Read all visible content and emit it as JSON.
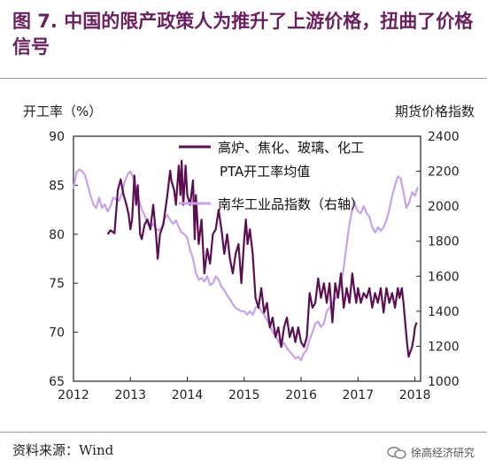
{
  "title": "图 7. 中国的限产政策人为推升了上游价格，扭曲了价格信号",
  "left_axis_title": "开工率（%）",
  "right_axis_title": "期货价格指数",
  "source": "资料来源：Wind",
  "watermark": "徐高经济研究",
  "colors": {
    "title": "#6b1f5f",
    "series1": "#5b0e52",
    "series2": "#c9a0ea"
  },
  "chart_data": {
    "type": "line",
    "x_ticks": [
      "2012",
      "2013",
      "2014",
      "2015",
      "2016",
      "2017",
      "2018"
    ],
    "xlim": [
      2012,
      2018.1
    ],
    "y_left": {
      "ticks": [
        "65",
        "70",
        "75",
        "80",
        "85",
        "90"
      ],
      "lim": [
        65,
        90
      ]
    },
    "y_right": {
      "ticks": [
        "1000",
        "1200",
        "1400",
        "1600",
        "1800",
        "2000",
        "2200",
        "2400"
      ],
      "lim": [
        1000,
        2400
      ]
    },
    "legend": [
      "高炉、焦化、玻璃、化工",
      "PTA开工率均值",
      "南华工业品指数（右轴）"
    ],
    "series": [
      {
        "name": "高炉、焦化、玻璃、化工 PTA开工率均值",
        "axis": "left",
        "points": [
          [
            2012.6,
            80.0
          ],
          [
            2012.65,
            80.4
          ],
          [
            2012.72,
            80.1
          ],
          [
            2012.78,
            84.5
          ],
          [
            2012.83,
            85.6
          ],
          [
            2012.88,
            84.0
          ],
          [
            2012.93,
            83.0
          ],
          [
            2012.97,
            82.0
          ],
          [
            2013.0,
            80.5
          ],
          [
            2013.03,
            81.5
          ],
          [
            2013.07,
            86.0
          ],
          [
            2013.1,
            83.0
          ],
          [
            2013.13,
            85.0
          ],
          [
            2013.17,
            80.0
          ],
          [
            2013.2,
            79.5
          ],
          [
            2013.25,
            81.0
          ],
          [
            2013.3,
            81.5
          ],
          [
            2013.35,
            80.5
          ],
          [
            2013.4,
            83.0
          ],
          [
            2013.45,
            80.0
          ],
          [
            2013.48,
            77.5
          ],
          [
            2013.52,
            80.0
          ],
          [
            2013.58,
            81.0
          ],
          [
            2013.65,
            84.0
          ],
          [
            2013.7,
            86.5
          ],
          [
            2013.72,
            85.5
          ],
          [
            2013.77,
            84.5
          ],
          [
            2013.8,
            83.0
          ],
          [
            2013.85,
            87.0
          ],
          [
            2013.88,
            84.0
          ],
          [
            2013.9,
            87.5
          ],
          [
            2013.93,
            83.0
          ],
          [
            2013.97,
            87.0
          ],
          [
            2014.0,
            84.0
          ],
          [
            2014.05,
            83.0
          ],
          [
            2014.1,
            85.5
          ],
          [
            2014.13,
            79.5
          ],
          [
            2014.15,
            84.0
          ],
          [
            2014.2,
            79.0
          ],
          [
            2014.25,
            81.5
          ],
          [
            2014.3,
            76.0
          ],
          [
            2014.35,
            78.5
          ],
          [
            2014.4,
            77.0
          ],
          [
            2014.45,
            80.0
          ],
          [
            2014.5,
            80.5
          ],
          [
            2014.55,
            82.5
          ],
          [
            2014.6,
            80.5
          ],
          [
            2014.65,
            78.0
          ],
          [
            2014.7,
            80.0
          ],
          [
            2014.75,
            77.5
          ],
          [
            2014.8,
            76.0
          ],
          [
            2014.85,
            78.0
          ],
          [
            2014.9,
            79.0
          ],
          [
            2014.95,
            75.0
          ],
          [
            2015.0,
            79.5
          ],
          [
            2015.03,
            81.5
          ],
          [
            2015.06,
            79.0
          ],
          [
            2015.1,
            80.5
          ],
          [
            2015.15,
            78.0
          ],
          [
            2015.2,
            73.5
          ],
          [
            2015.25,
            72.5
          ],
          [
            2015.3,
            74.5
          ],
          [
            2015.35,
            72.0
          ],
          [
            2015.4,
            73.0
          ],
          [
            2015.45,
            70.5
          ],
          [
            2015.5,
            71.5
          ],
          [
            2015.55,
            69.5
          ],
          [
            2015.6,
            70.5
          ],
          [
            2015.65,
            68.5
          ],
          [
            2015.7,
            70.5
          ],
          [
            2015.75,
            71.5
          ],
          [
            2015.8,
            69.5
          ],
          [
            2015.85,
            70.5
          ],
          [
            2015.9,
            69.0
          ],
          [
            2015.95,
            70.5
          ],
          [
            2016.0,
            69.0
          ],
          [
            2016.05,
            68.5
          ],
          [
            2016.1,
            69.5
          ],
          [
            2016.15,
            74.0
          ],
          [
            2016.2,
            72.5
          ],
          [
            2016.25,
            73.0
          ],
          [
            2016.3,
            75.5
          ],
          [
            2016.35,
            73.5
          ],
          [
            2016.4,
            75.0
          ],
          [
            2016.45,
            73.0
          ],
          [
            2016.5,
            75.0
          ],
          [
            2016.55,
            71.0
          ],
          [
            2016.6,
            75.0
          ],
          [
            2016.65,
            73.5
          ],
          [
            2016.7,
            76.0
          ],
          [
            2016.75,
            72.5
          ],
          [
            2016.8,
            74.5
          ],
          [
            2016.85,
            73.0
          ],
          [
            2016.9,
            76.0
          ],
          [
            2016.93,
            74.5
          ],
          [
            2016.97,
            73.0
          ],
          [
            2017.0,
            74.5
          ],
          [
            2017.05,
            73.0
          ],
          [
            2017.1,
            74.0
          ],
          [
            2017.15,
            73.5
          ],
          [
            2017.2,
            74.5
          ],
          [
            2017.25,
            72.5
          ],
          [
            2017.3,
            74.0
          ],
          [
            2017.35,
            73.0
          ],
          [
            2017.4,
            74.5
          ],
          [
            2017.45,
            72.0
          ],
          [
            2017.5,
            74.5
          ],
          [
            2017.55,
            73.0
          ],
          [
            2017.6,
            74.0
          ],
          [
            2017.65,
            72.5
          ],
          [
            2017.7,
            74.5
          ],
          [
            2017.73,
            73.5
          ],
          [
            2017.77,
            74.5
          ],
          [
            2017.8,
            73.0
          ],
          [
            2017.83,
            71.0
          ],
          [
            2017.86,
            69.0
          ],
          [
            2017.89,
            67.5
          ],
          [
            2017.92,
            68.0
          ],
          [
            2017.95,
            68.5
          ],
          [
            2017.98,
            69.5
          ],
          [
            2018.0,
            70.5
          ],
          [
            2018.03,
            71.0
          ]
        ]
      },
      {
        "name": "南华工业品指数（右轴）",
        "axis": "right",
        "points": [
          [
            2012.0,
            2100
          ],
          [
            2012.05,
            2190
          ],
          [
            2012.1,
            2210
          ],
          [
            2012.15,
            2200
          ],
          [
            2012.2,
            2180
          ],
          [
            2012.25,
            2120
          ],
          [
            2012.3,
            2060
          ],
          [
            2012.35,
            2010
          ],
          [
            2012.4,
            1990
          ],
          [
            2012.45,
            2050
          ],
          [
            2012.5,
            1990
          ],
          [
            2012.55,
            2010
          ],
          [
            2012.6,
            1970
          ],
          [
            2012.65,
            2000
          ],
          [
            2012.7,
            2050
          ],
          [
            2012.75,
            2040
          ],
          [
            2012.8,
            2030
          ],
          [
            2012.85,
            2070
          ],
          [
            2012.9,
            2140
          ],
          [
            2012.95,
            2180
          ],
          [
            2013.0,
            2200
          ],
          [
            2013.05,
            2160
          ],
          [
            2013.1,
            2100
          ],
          [
            2013.15,
            2040
          ],
          [
            2013.2,
            1980
          ],
          [
            2013.25,
            1950
          ],
          [
            2013.3,
            1900
          ],
          [
            2013.35,
            1880
          ],
          [
            2013.4,
            1900
          ],
          [
            2013.45,
            1870
          ],
          [
            2013.5,
            1860
          ],
          [
            2013.55,
            1880
          ],
          [
            2013.6,
            1930
          ],
          [
            2013.65,
            1950
          ],
          [
            2013.7,
            1920
          ],
          [
            2013.75,
            1900
          ],
          [
            2013.8,
            1920
          ],
          [
            2013.85,
            1880
          ],
          [
            2013.9,
            1850
          ],
          [
            2013.95,
            1840
          ],
          [
            2014.0,
            1820
          ],
          [
            2014.05,
            1750
          ],
          [
            2014.1,
            1700
          ],
          [
            2014.15,
            1620
          ],
          [
            2014.2,
            1580
          ],
          [
            2014.25,
            1590
          ],
          [
            2014.3,
            1570
          ],
          [
            2014.35,
            1600
          ],
          [
            2014.4,
            1550
          ],
          [
            2014.45,
            1560
          ],
          [
            2014.5,
            1600
          ],
          [
            2014.55,
            1580
          ],
          [
            2014.6,
            1540
          ],
          [
            2014.65,
            1520
          ],
          [
            2014.7,
            1490
          ],
          [
            2014.75,
            1470
          ],
          [
            2014.8,
            1440
          ],
          [
            2014.85,
            1420
          ],
          [
            2014.9,
            1410
          ],
          [
            2014.95,
            1400
          ],
          [
            2015.0,
            1400
          ],
          [
            2015.05,
            1380
          ],
          [
            2015.1,
            1400
          ],
          [
            2015.15,
            1380
          ],
          [
            2015.2,
            1420
          ],
          [
            2015.25,
            1430
          ],
          [
            2015.3,
            1400
          ],
          [
            2015.35,
            1380
          ],
          [
            2015.4,
            1350
          ],
          [
            2015.45,
            1320
          ],
          [
            2015.5,
            1280
          ],
          [
            2015.55,
            1260
          ],
          [
            2015.6,
            1230
          ],
          [
            2015.65,
            1200
          ],
          [
            2015.7,
            1220
          ],
          [
            2015.75,
            1190
          ],
          [
            2015.8,
            1170
          ],
          [
            2015.85,
            1150
          ],
          [
            2015.9,
            1130
          ],
          [
            2015.95,
            1140
          ],
          [
            2016.0,
            1120
          ],
          [
            2016.05,
            1160
          ],
          [
            2016.1,
            1180
          ],
          [
            2016.15,
            1240
          ],
          [
            2016.2,
            1280
          ],
          [
            2016.25,
            1330
          ],
          [
            2016.3,
            1340
          ],
          [
            2016.35,
            1310
          ],
          [
            2016.4,
            1330
          ],
          [
            2016.45,
            1400
          ],
          [
            2016.5,
            1420
          ],
          [
            2016.55,
            1450
          ],
          [
            2016.6,
            1470
          ],
          [
            2016.65,
            1500
          ],
          [
            2016.7,
            1560
          ],
          [
            2016.75,
            1650
          ],
          [
            2016.8,
            1780
          ],
          [
            2016.85,
            1900
          ],
          [
            2016.9,
            1980
          ],
          [
            2016.93,
            2030
          ],
          [
            2016.97,
            1990
          ],
          [
            2017.0,
            1970
          ],
          [
            2017.05,
            1960
          ],
          [
            2017.1,
            2000
          ],
          [
            2017.15,
            1960
          ],
          [
            2017.2,
            1940
          ],
          [
            2017.25,
            1880
          ],
          [
            2017.3,
            1850
          ],
          [
            2017.35,
            1880
          ],
          [
            2017.4,
            1860
          ],
          [
            2017.45,
            1880
          ],
          [
            2017.5,
            1920
          ],
          [
            2017.55,
            1980
          ],
          [
            2017.6,
            2060
          ],
          [
            2017.65,
            2120
          ],
          [
            2017.7,
            2170
          ],
          [
            2017.75,
            2160
          ],
          [
            2017.8,
            2080
          ],
          [
            2017.85,
            1990
          ],
          [
            2017.9,
            2020
          ],
          [
            2017.95,
            2080
          ],
          [
            2018.0,
            2060
          ],
          [
            2018.05,
            2110
          ]
        ]
      }
    ]
  }
}
